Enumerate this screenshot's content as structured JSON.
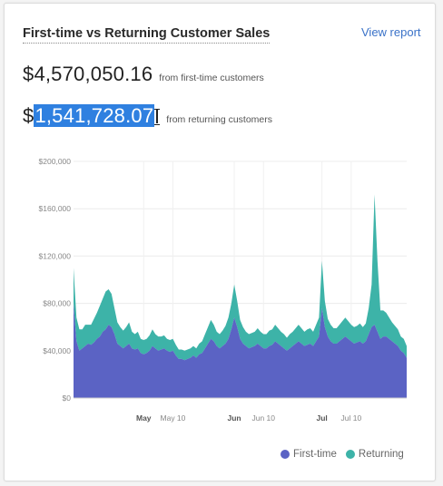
{
  "card": {
    "title": "First-time vs Returning Customer Sales",
    "view_report": "View report"
  },
  "metrics": {
    "first_time": {
      "value_prefix": "$",
      "value_main": "4,570,050.16",
      "caption": "from first-time customers"
    },
    "returning": {
      "value_prefix": "$",
      "value_selected": "1,541,728.07",
      "caption": "from returning customers"
    }
  },
  "colors": {
    "first_time": "#5b63c4",
    "returning": "#3db3a8",
    "selection": "#2f80e0",
    "link": "#3a72c8"
  },
  "chart_data": {
    "type": "area",
    "stacked": true,
    "y_ticks": [
      "$0",
      "$40,000",
      "$80,000",
      "$120,000",
      "$160,000",
      "$200,000"
    ],
    "ylim": [
      0,
      200000
    ],
    "x_ticks": [
      "May",
      "May 10",
      "Jun",
      "Jun 10",
      "Jul",
      "Jul 10"
    ],
    "x_tick_days": [
      24,
      34,
      55,
      65,
      85,
      95
    ],
    "x_tick_bold": [
      true,
      false,
      true,
      false,
      true,
      false
    ],
    "xlim": [
      0,
      114
    ],
    "grid": true,
    "legend_position": "bottom-right",
    "series": [
      {
        "name": "First-time",
        "color": "#5b63c4",
        "values": [
          80000,
          48000,
          40000,
          42000,
          44000,
          46000,
          45000,
          47000,
          50000,
          52000,
          56000,
          58000,
          62000,
          60000,
          54000,
          46000,
          44000,
          42000,
          44000,
          46000,
          42000,
          41000,
          42000,
          38000,
          37000,
          38000,
          40000,
          44000,
          42000,
          40000,
          41000,
          42000,
          40000,
          39000,
          40000,
          36000,
          33000,
          33000,
          32000,
          33000,
          34000,
          36000,
          34000,
          37000,
          38000,
          42000,
          46000,
          50000,
          48000,
          44000,
          42000,
          44000,
          46000,
          50000,
          58000,
          68000,
          60000,
          50000,
          46000,
          44000,
          42000,
          43000,
          44000,
          46000,
          44000,
          42000,
          42000,
          44000,
          45000,
          48000,
          46000,
          44000,
          42000,
          40000,
          42000,
          44000,
          46000,
          48000,
          46000,
          44000,
          45000,
          46000,
          44000,
          48000,
          52000,
          76000,
          60000,
          52000,
          48000,
          46000,
          46000,
          48000,
          50000,
          52000,
          50000,
          48000,
          46000,
          47000,
          48000,
          46000,
          48000,
          54000,
          60000,
          62000,
          56000,
          50000,
          52000,
          52000,
          50000,
          48000,
          46000,
          44000,
          40000,
          38000,
          34000
        ],
        "total_label": "$4,570,050.16"
      },
      {
        "name": "Returning",
        "color": "#3db3a8",
        "values": [
          30000,
          20000,
          18000,
          16000,
          18000,
          16000,
          17000,
          20000,
          22000,
          26000,
          28000,
          32000,
          30000,
          28000,
          22000,
          18000,
          16000,
          15000,
          16000,
          18000,
          14000,
          13000,
          14000,
          12000,
          12000,
          12000,
          13000,
          14000,
          12000,
          12000,
          11000,
          11000,
          10000,
          10000,
          10000,
          9000,
          8000,
          8000,
          8000,
          8000,
          8000,
          8000,
          8000,
          9000,
          10000,
          12000,
          14000,
          16000,
          14000,
          12000,
          12000,
          13000,
          15000,
          18000,
          22000,
          28000,
          22000,
          16000,
          14000,
          12000,
          12000,
          12000,
          12000,
          13000,
          12000,
          12000,
          12000,
          13000,
          13000,
          14000,
          13000,
          12000,
          12000,
          11000,
          12000,
          12000,
          13000,
          14000,
          13000,
          12000,
          13000,
          13000,
          12000,
          14000,
          16000,
          40000,
          22000,
          15000,
          14000,
          13000,
          13000,
          14000,
          15000,
          16000,
          15000,
          14000,
          14000,
          14000,
          15000,
          14000,
          15000,
          22000,
          36000,
          110000,
          60000,
          24000,
          22000,
          20000,
          18000,
          16000,
          15000,
          14000,
          12000,
          12000,
          10000
        ],
        "total_label": "$1,541,728.07"
      }
    ]
  }
}
